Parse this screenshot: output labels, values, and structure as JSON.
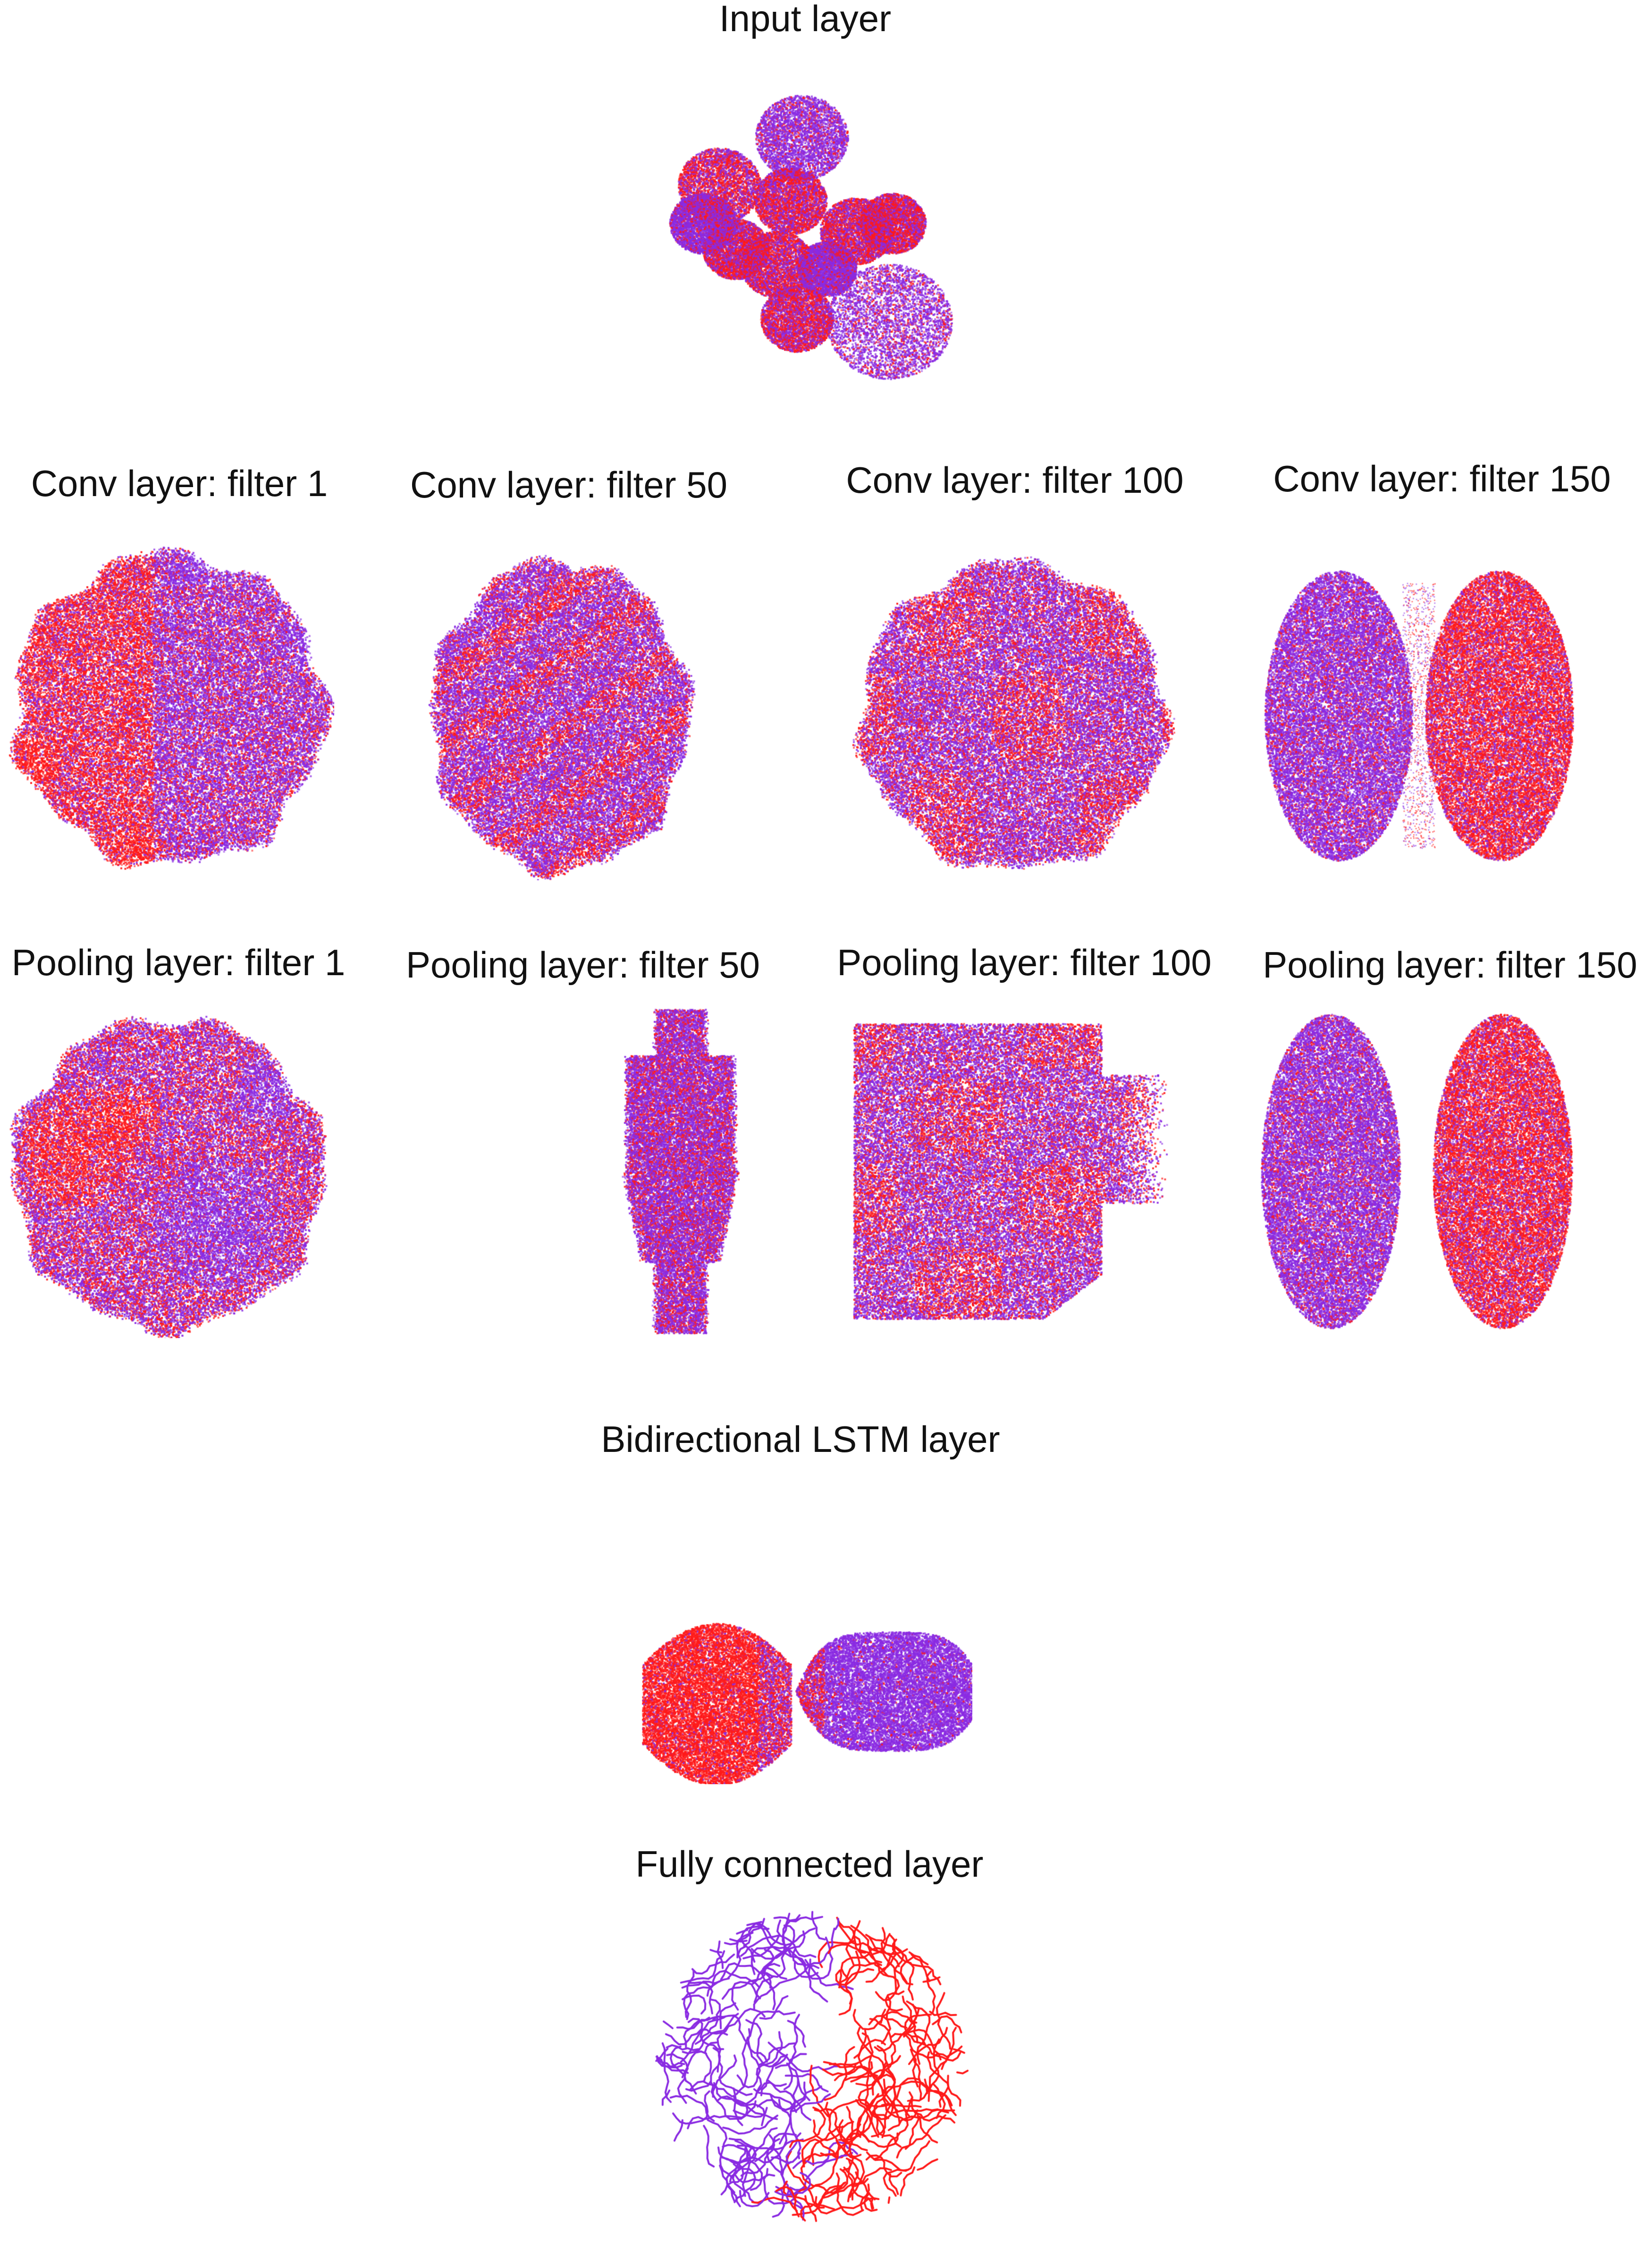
{
  "colors": {
    "class_a": "#ff1a1a",
    "class_b": "#8a2be2"
  },
  "chart_data": [
    {
      "type": "scatter",
      "title": "Input layer",
      "xlabel": "",
      "ylabel": "",
      "grid": false,
      "legend": "none",
      "series": [
        {
          "color": "#ff1a1a"
        },
        {
          "color": "#8a2be2"
        }
      ]
    },
    {
      "type": "scatter",
      "title": "Conv layer: filter 1",
      "xlabel": "",
      "ylabel": "",
      "grid": false,
      "legend": "none"
    },
    {
      "type": "scatter",
      "title": "Conv layer: filter 50",
      "xlabel": "",
      "ylabel": "",
      "grid": false,
      "legend": "none"
    },
    {
      "type": "scatter",
      "title": "Conv layer: filter 100",
      "xlabel": "",
      "ylabel": "",
      "grid": false,
      "legend": "none"
    },
    {
      "type": "scatter",
      "title": "Conv layer: filter 150",
      "xlabel": "",
      "ylabel": "",
      "grid": false,
      "legend": "none"
    },
    {
      "type": "scatter",
      "title": "Pooling layer: filter 1",
      "xlabel": "",
      "ylabel": "",
      "grid": false,
      "legend": "none"
    },
    {
      "type": "scatter",
      "title": "Pooling layer: filter 50",
      "xlabel": "",
      "ylabel": "",
      "grid": false,
      "legend": "none"
    },
    {
      "type": "scatter",
      "title": "Pooling layer: filter 100",
      "xlabel": "",
      "ylabel": "",
      "grid": false,
      "legend": "none"
    },
    {
      "type": "scatter",
      "title": "Pooling layer: filter 150",
      "xlabel": "",
      "ylabel": "",
      "grid": false,
      "legend": "none"
    },
    {
      "type": "scatter",
      "title": "Bidirectional LSTM layer",
      "xlabel": "",
      "ylabel": "",
      "grid": false,
      "legend": "none"
    },
    {
      "type": "scatter",
      "title": "Fully connected layer",
      "xlabel": "",
      "ylabel": "",
      "grid": false,
      "legend": "none"
    }
  ]
}
